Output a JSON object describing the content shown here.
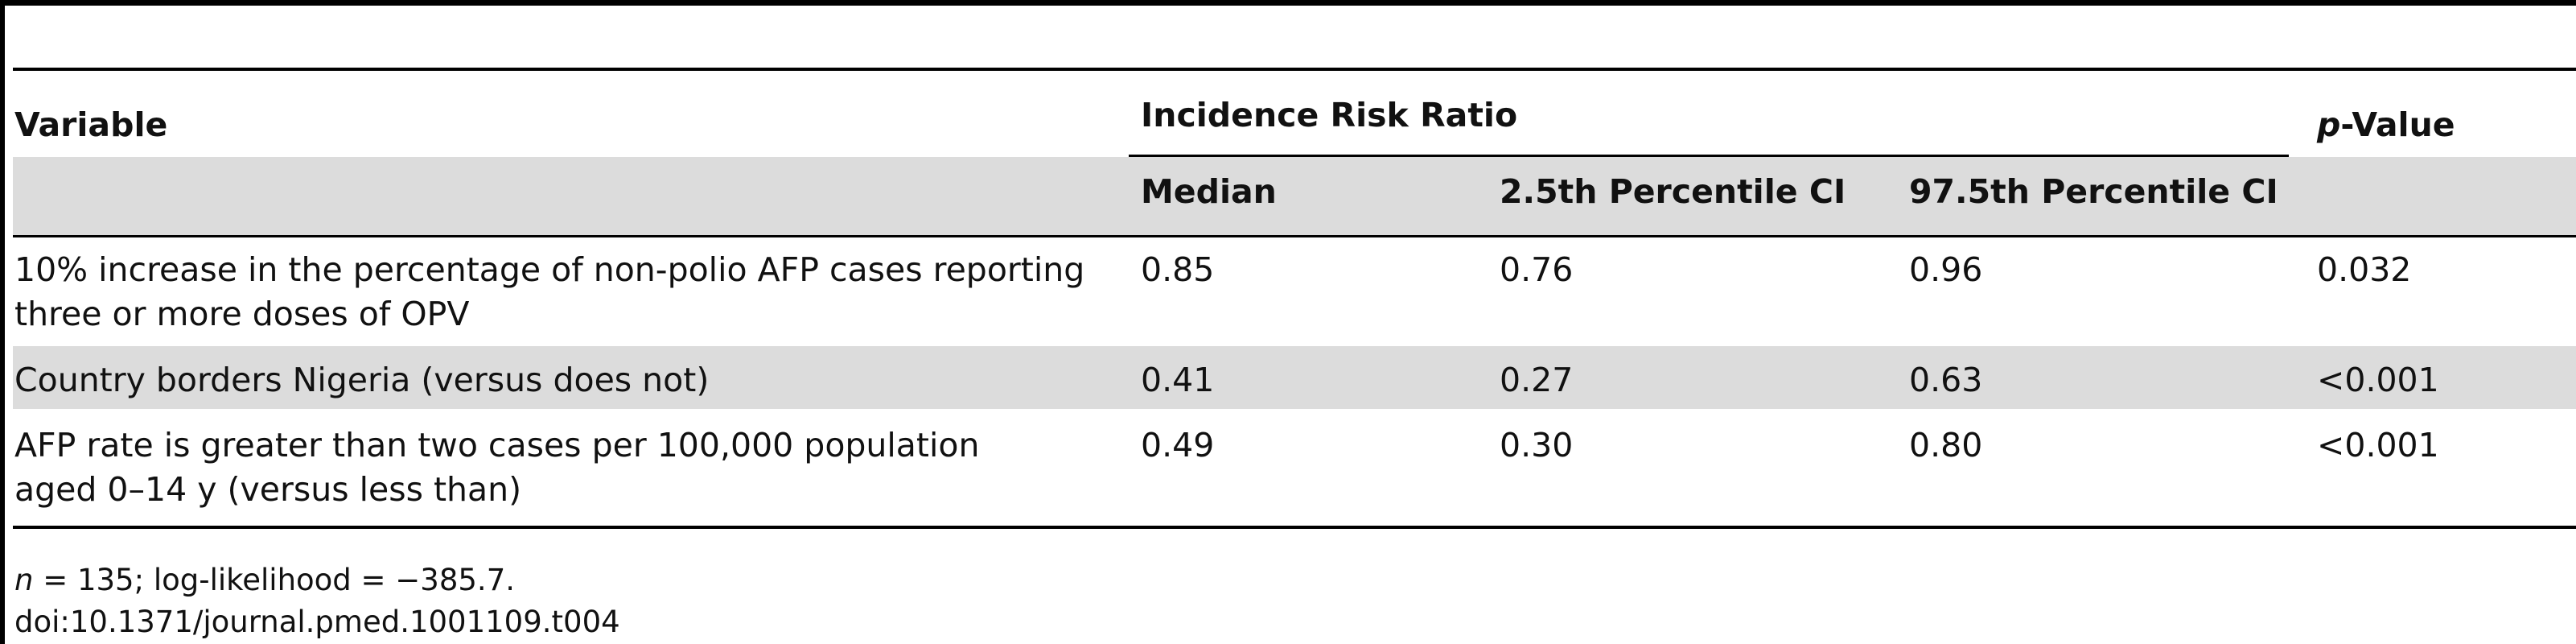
{
  "table": {
    "headers": {
      "variable": "Variable",
      "irr_group": "Incidence Risk Ratio",
      "p_italic": "p",
      "p_rest": "-Value",
      "median": "Median",
      "ci_low": "2.5th Percentile CI",
      "ci_high": "97.5th Percentile CI"
    },
    "rows": [
      {
        "variable_line1": "10% increase in the percentage of non-polio AFP cases reporting",
        "variable_line2": "three or more doses of OPV",
        "median": "0.85",
        "ci_low": "0.76",
        "ci_high": "0.96",
        "p_value": "0.032"
      },
      {
        "variable_line1": "Country borders Nigeria (versus does not)",
        "median": "0.41",
        "ci_low": "0.27",
        "ci_high": "0.63",
        "p_value": "<0.001"
      },
      {
        "variable_line1": "AFP rate is greater than two cases per 100,000 population",
        "variable_line2": "aged 0–14 y (versus less than)",
        "median": "0.49",
        "ci_low": "0.30",
        "ci_high": "0.80",
        "p_value": "<0.001"
      }
    ]
  },
  "footer": {
    "n_italic": "n",
    "stats": " = 135; log-likelihood = −385.7.",
    "doi": "doi:10.1371/journal.pmed.1001109.t004"
  }
}
